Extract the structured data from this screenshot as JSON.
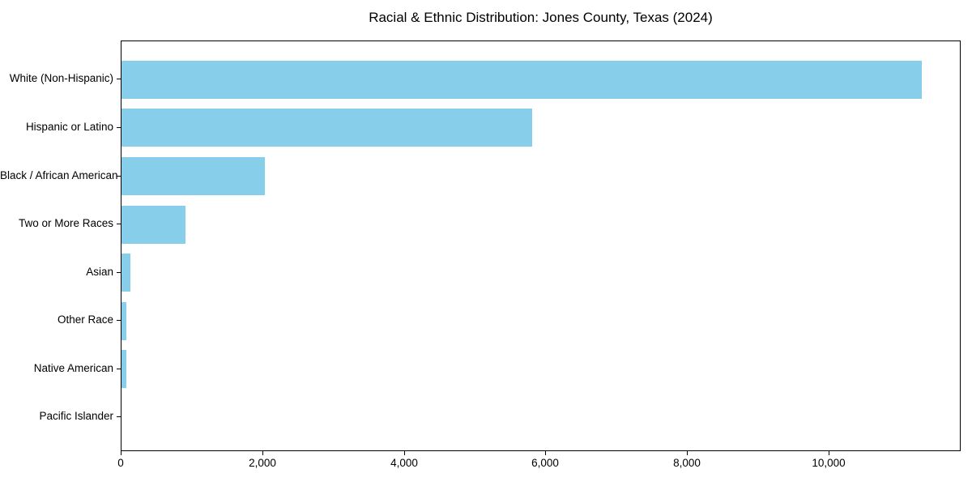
{
  "figure": {
    "background": "#ffffff",
    "spine_color": "#000000",
    "text_color": "#000000"
  },
  "chart_data": {
    "type": "bar",
    "orientation": "horizontal",
    "title": "Racial & Ethnic Distribution: Jones County, Texas (2024)",
    "categories": [
      "White (Non-Hispanic)",
      "Hispanic or Latino",
      "Black / African American",
      "Two or More Races",
      "Asian",
      "Other Race",
      "Native American",
      "Pacific Islander"
    ],
    "values": [
      11300,
      5800,
      2025,
      900,
      130,
      70,
      68,
      0
    ],
    "bar_color": "#87CEEB",
    "xlabel": "",
    "ylabel": "",
    "xlim": [
      0,
      11865
    ],
    "x_ticks": [
      0,
      2000,
      4000,
      6000,
      8000,
      10000
    ],
    "x_tick_labels": [
      "0",
      "2,000",
      "4,000",
      "6,000",
      "8,000",
      "10,000"
    ],
    "grid": false,
    "legend_position": "none",
    "sort_order": "descending"
  }
}
